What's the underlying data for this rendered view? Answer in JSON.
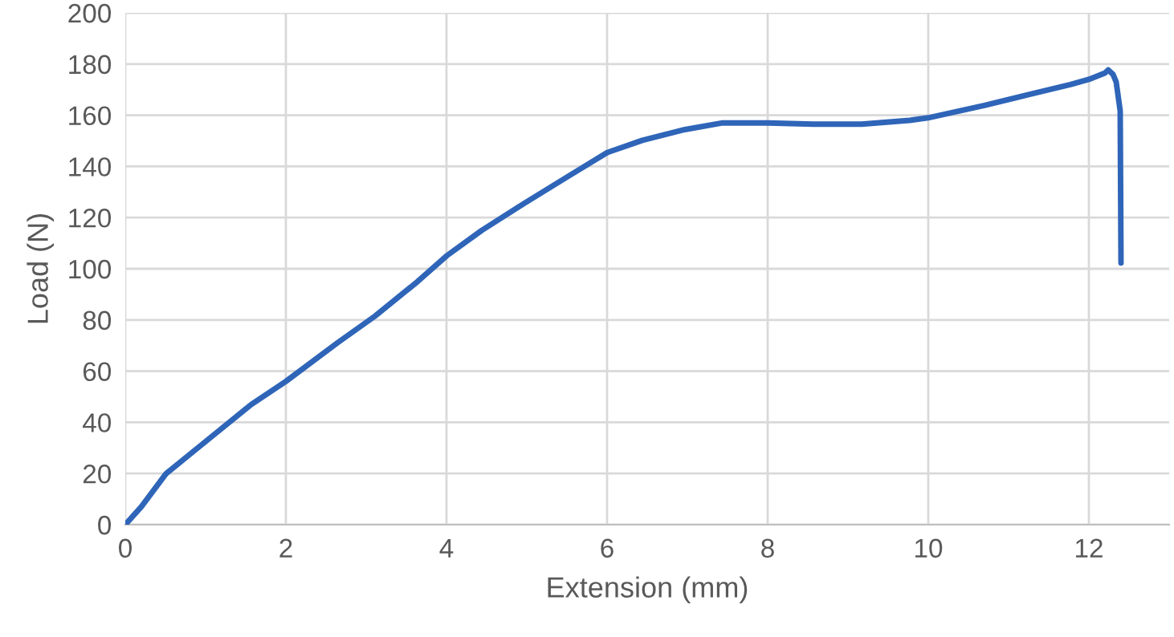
{
  "chart_data": {
    "type": "line",
    "xlabel": "Extension (mm)",
    "ylabel": "Load (N)",
    "series": [
      {
        "color": "#2f65b8",
        "x": [
          0,
          0.2,
          0.51,
          1.04,
          1.57,
          2.0,
          2.64,
          3.11,
          3.64,
          4.0,
          4.44,
          4.97,
          5.51,
          6.0,
          6.44,
          6.97,
          7.44,
          8.0,
          8.57,
          9.17,
          9.77,
          10.0,
          10.7,
          11.24,
          11.77,
          12.0,
          12.2,
          12.24,
          12.3,
          12.34,
          12.39,
          12.4
        ],
        "values": [
          0,
          7,
          20,
          33.5,
          47,
          56,
          71,
          81.5,
          95,
          105,
          115,
          125.6,
          136,
          145.4,
          150.2,
          154.4,
          157,
          157,
          156.5,
          156.5,
          158,
          159,
          163.8,
          168,
          172,
          174,
          176.5,
          177.7,
          176,
          173,
          161.7,
          102.3
        ]
      }
    ],
    "xlim": [
      0,
      13
    ],
    "ylim": [
      0,
      200
    ],
    "xticks": [
      0,
      2,
      4,
      6,
      8,
      10,
      12
    ],
    "yticks": [
      0,
      20,
      40,
      60,
      80,
      100,
      120,
      140,
      160,
      180,
      200
    ],
    "grid": true,
    "marker": "none",
    "line_style": "solid"
  }
}
